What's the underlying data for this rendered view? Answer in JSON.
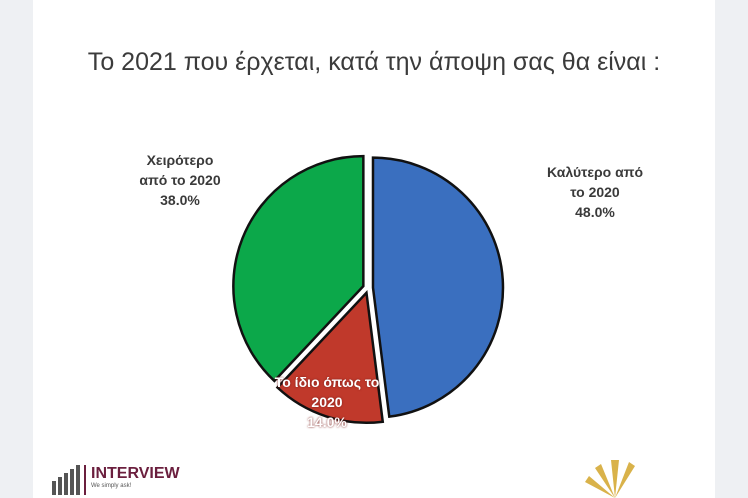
{
  "title": "Το 2021 που έρχεται, κατά την άποψη σας θα είναι :",
  "chart_data": {
    "type": "pie",
    "start": "12 o'clock, clockwise",
    "slices": [
      {
        "label_lines": [
          "Καλύτερο από",
          "το 2020"
        ],
        "value": 48.0,
        "value_label": "48.0%",
        "color": "#3a6fbf"
      },
      {
        "label_lines": [
          "Το ίδιο όπως το",
          "2020"
        ],
        "value": 14.0,
        "value_label": "14.0%",
        "color": "#c0392b"
      },
      {
        "label_lines": [
          "Χειρότερο",
          "από το 2020"
        ],
        "value": 38.0,
        "value_label": "38.0%",
        "color": "#0ca84a"
      }
    ]
  },
  "logo": {
    "brand": "INTERVIEW",
    "tagline": "We simply ask!"
  }
}
